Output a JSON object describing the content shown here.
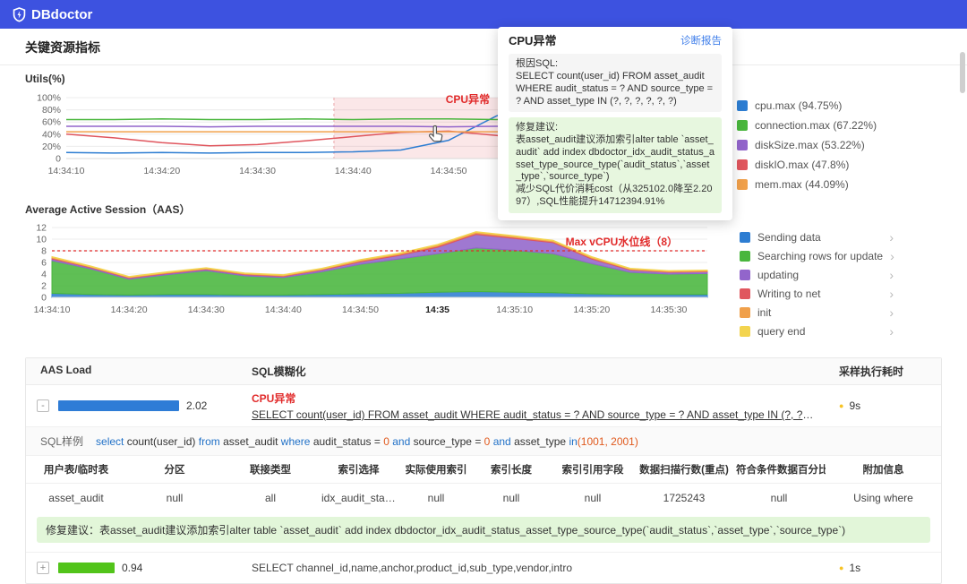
{
  "brand": {
    "name": "DBdoctor"
  },
  "page": {
    "title": "关键资源指标"
  },
  "popup": {
    "title": "CPU异常",
    "report_link": "诊断报告",
    "root_sql_label": "根因SQL:",
    "root_sql": "SELECT count(user_id) FROM asset_audit WHERE audit_status = ? AND source_type = ? AND asset_type IN (?, ?, ?, ?, ?, ?)",
    "fix_label": "修复建议:",
    "fix_line1": "表asset_audit建议添加索引alter table `asset_audit` add index dbdoctor_idx_audit_status_asset_type_source_type(`audit_status`,`asset_type`,`source_type`)",
    "fix_line2": "减少SQL代价消耗cost（从325102.0降至2.2097）,SQL性能提升14712394.91%"
  },
  "chart_data": [
    {
      "type": "line",
      "title": "Utils(%)",
      "ylim": [
        0,
        100
      ],
      "y_tick_labels": [
        "0",
        "20%",
        "40%",
        "60%",
        "80%",
        "100%"
      ],
      "x_seconds": [
        0,
        5,
        10,
        15,
        20,
        25,
        30,
        35,
        40,
        45,
        50,
        55,
        60,
        65
      ],
      "x_tick_seconds": [
        0,
        10,
        20,
        30,
        40,
        50,
        60
      ],
      "x_tick_labels": [
        "14:34:10",
        "14:34:20",
        "14:34:30",
        "14:34:40",
        "14:34:50",
        "14:35",
        "14:35:10"
      ],
      "bold_tick": "14:35",
      "anomaly_region": {
        "label": "CPU异常",
        "start_s": 28,
        "color": "#e12b2b"
      },
      "series": [
        {
          "name": "cpu.max",
          "color": "#2d7dd2",
          "values": [
            10,
            9,
            10,
            9,
            10,
            10,
            11,
            14,
            30,
            70,
            92,
            95,
            95,
            95
          ]
        },
        {
          "name": "connection.max",
          "color": "#49b63d",
          "values": [
            64,
            64,
            65,
            64,
            64,
            65,
            64,
            65,
            65,
            64,
            66,
            67,
            67,
            67
          ]
        },
        {
          "name": "diskSize.max",
          "color": "#9265cb",
          "values": [
            53,
            53,
            53,
            52,
            53,
            53,
            53,
            53,
            52,
            53,
            53,
            53,
            53,
            53
          ]
        },
        {
          "name": "diskIO.max",
          "color": "#e0565e",
          "values": [
            40,
            34,
            26,
            21,
            23,
            29,
            36,
            43,
            45,
            38,
            31,
            38,
            46,
            48
          ]
        },
        {
          "name": "mem.max",
          "color": "#f0a04b",
          "values": [
            44,
            44,
            44,
            44,
            44,
            44,
            44,
            44,
            44,
            44,
            44,
            44,
            44,
            44
          ]
        }
      ],
      "legend": [
        {
          "label": "cpu.max (94.75%)",
          "color": "#2d7dd2"
        },
        {
          "label": "connection.max (67.22%)",
          "color": "#49b63d"
        },
        {
          "label": "diskSize.max (53.22%)",
          "color": "#9265cb"
        },
        {
          "label": "diskIO.max (47.8%)",
          "color": "#e0565e"
        },
        {
          "label": "mem.max (44.09%)",
          "color": "#f0a04b"
        }
      ]
    },
    {
      "type": "area",
      "title": "Average Active Session（AAS）",
      "ylim": [
        0,
        12
      ],
      "y_tick_labels": [
        "0",
        "2",
        "4",
        "6",
        "8",
        "10",
        "12"
      ],
      "x_seconds": [
        0,
        5,
        10,
        15,
        20,
        25,
        30,
        35,
        40,
        45,
        50,
        55,
        60,
        65,
        70,
        75,
        80,
        85
      ],
      "x_tick_seconds": [
        0,
        10,
        20,
        30,
        40,
        50,
        60,
        70,
        80
      ],
      "x_tick_labels": [
        "14:34:10",
        "14:34:20",
        "14:34:30",
        "14:34:40",
        "14:34:50",
        "14:35",
        "14:35:10",
        "14:35:20",
        "14:35:30"
      ],
      "bold_tick": "14:35",
      "threshold": {
        "value": 8,
        "label": "Max vCPU水位线（8）",
        "color": "#e12b2b"
      },
      "series": [
        {
          "name": "Sending data",
          "color": "#2d7dd2",
          "values": [
            0.7,
            0.5,
            0.4,
            0.5,
            0.5,
            0.4,
            0.4,
            0.5,
            0.6,
            0.7,
            0.9,
            1.0,
            0.9,
            0.8,
            0.6,
            0.5,
            0.5,
            0.5
          ]
        },
        {
          "name": "Searching rows for update",
          "color": "#49b63d",
          "values": [
            5.6,
            4.4,
            2.7,
            3.4,
            4.1,
            3.3,
            3.0,
            3.9,
            5.1,
            5.9,
            6.6,
            7.5,
            7.2,
            6.7,
            5.2,
            3.8,
            3.5,
            3.6
          ]
        },
        {
          "name": "updating",
          "color": "#9265cb",
          "values": [
            0.3,
            0.2,
            0.2,
            0.2,
            0.2,
            0.2,
            0.2,
            0.3,
            0.4,
            0.6,
            1.1,
            2.3,
            2.0,
            1.9,
            0.8,
            0.4,
            0.3,
            0.3
          ]
        },
        {
          "name": "Writing to net",
          "color": "#e0565e",
          "values": [
            0.15,
            0.1,
            0.1,
            0.1,
            0.1,
            0.1,
            0.1,
            0.1,
            0.15,
            0.15,
            0.2,
            0.2,
            0.2,
            0.15,
            0.15,
            0.1,
            0.1,
            0.1
          ]
        },
        {
          "name": "init",
          "color": "#f0a04b",
          "values": [
            0.15,
            0.1,
            0.1,
            0.1,
            0.1,
            0.1,
            0.1,
            0.1,
            0.15,
            0.15,
            0.2,
            0.2,
            0.2,
            0.15,
            0.15,
            0.1,
            0.1,
            0.1
          ]
        },
        {
          "name": "query end",
          "color": "#f3d44f",
          "values": [
            0.1,
            0.1,
            0.1,
            0.1,
            0.1,
            0.1,
            0.1,
            0.1,
            0.1,
            0.1,
            0.1,
            0.1,
            0.1,
            0.1,
            0.1,
            0.1,
            0.1,
            0.1
          ]
        }
      ],
      "legend": [
        {
          "label": "Sending data",
          "color": "#2d7dd2"
        },
        {
          "label": "Searching rows for update",
          "color": "#49b63d"
        },
        {
          "label": "updating",
          "color": "#9265cb"
        },
        {
          "label": "Writing to net",
          "color": "#e0565e"
        },
        {
          "label": "init",
          "color": "#f0a04b"
        },
        {
          "label": "query end",
          "color": "#f3d44f"
        }
      ],
      "legend_arrow": "›"
    }
  ],
  "table": {
    "headers": [
      "AAS Load",
      "SQL模糊化",
      "采样执行耗时"
    ],
    "dot_char": "●",
    "dot_color": "#f7c325",
    "rows": [
      {
        "expand_icon": "-",
        "load": "2.02",
        "bar_value": 2.02,
        "bar_color": "#2e7cd6",
        "anomaly": "CPU异常",
        "sql": "SELECT count(user_id) FROM asset_audit WHERE audit_status = ? AND source_type = ? AND asset_type IN (?, ?, ?, ?, ?, ?)",
        "duration": "9s"
      },
      {
        "expand_icon": "+",
        "load": "0.94",
        "bar_value": 0.94,
        "bar_color": "#52c41a",
        "sql": "SELECT channel_id,name,anchor,product_id,sub_type,vendor,intro",
        "duration": "1s"
      }
    ],
    "sample": {
      "label": "SQL样例",
      "tokens": [
        {
          "text": "select ",
          "type": "kw"
        },
        {
          "text": "count(user_id) ",
          "type": "plain"
        },
        {
          "text": "from",
          "type": "kw"
        },
        {
          "text": " asset_audit ",
          "type": "plain"
        },
        {
          "text": "where",
          "type": "kw"
        },
        {
          "text": " audit_status = ",
          "type": "plain"
        },
        {
          "text": "0",
          "type": "num"
        },
        {
          "text": " and ",
          "type": "kw"
        },
        {
          "text": "source_type = ",
          "type": "plain"
        },
        {
          "text": "0",
          "type": "num"
        },
        {
          "text": " and ",
          "type": "kw"
        },
        {
          "text": "asset_type ",
          "type": "plain"
        },
        {
          "text": "in",
          "type": "kw"
        },
        {
          "text": "(1001, 2001)",
          "type": "num"
        }
      ]
    },
    "plan": {
      "headers": [
        "用户表/临时表",
        "分区",
        "联接类型",
        "索引选择",
        "实际使用索引",
        "索引长度",
        "索引引用字段",
        "数据扫描行数(重点)",
        "符合条件数据百分比",
        "附加信息"
      ],
      "row": [
        "asset_audit",
        "null",
        "all",
        "idx_audit_status...",
        "null",
        "null",
        "null",
        "1725243",
        "null",
        "Using where"
      ]
    },
    "fix": {
      "label": "修复建议：",
      "text": "表asset_audit建议添加索引alter table `asset_audit` add index dbdoctor_idx_audit_status_asset_type_source_type(`audit_status`,`asset_type`,`source_type`)"
    }
  }
}
